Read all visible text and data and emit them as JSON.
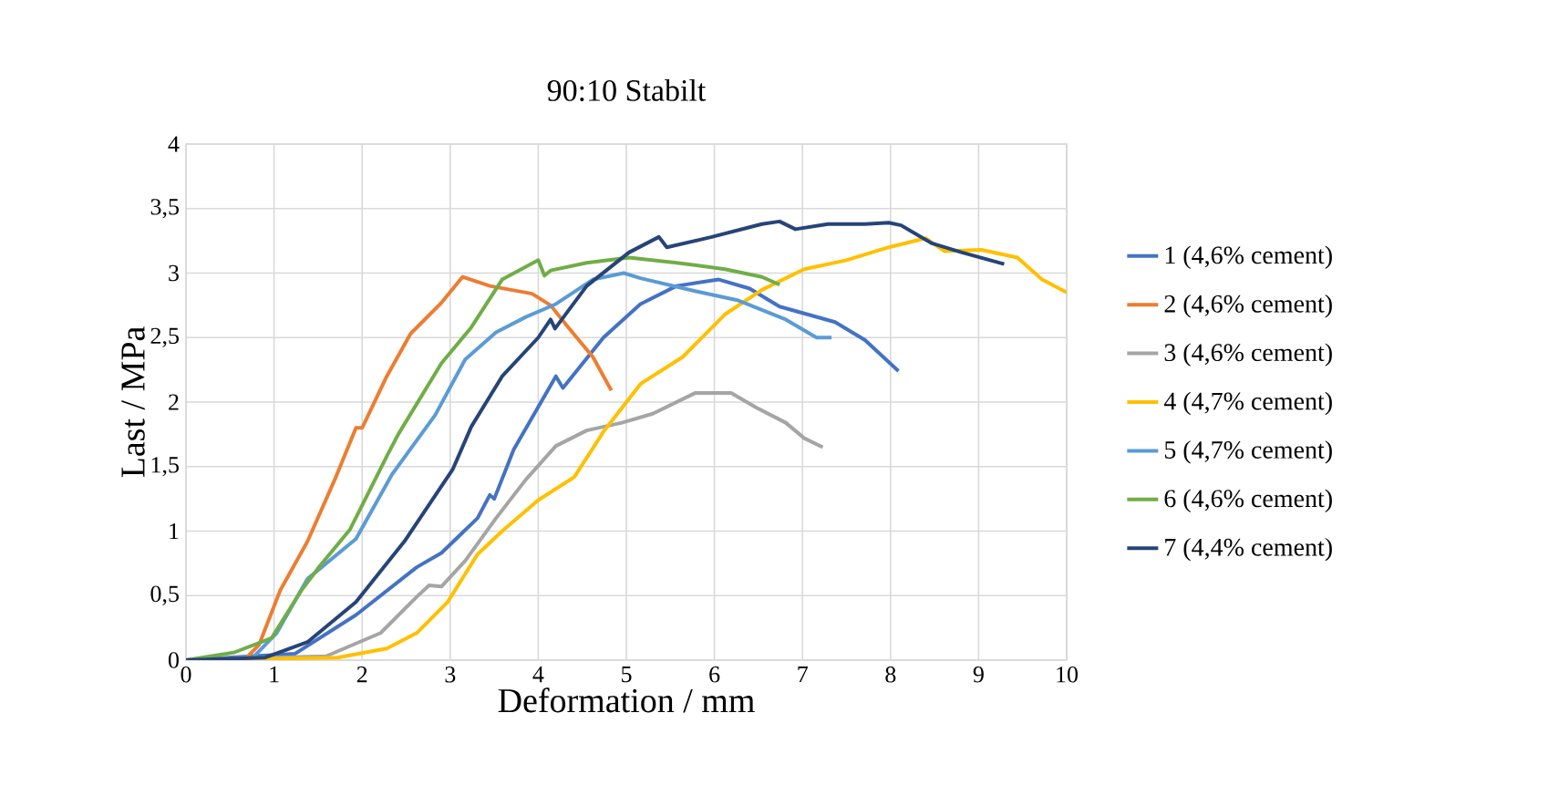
{
  "chart_data": {
    "type": "line",
    "title": "90:10 Stabilt",
    "xlabel": "Deformation / mm",
    "ylabel": "Last / MPa",
    "xlim": [
      0,
      10
    ],
    "ylim": [
      0,
      4
    ],
    "xticks": [
      0,
      1,
      2,
      3,
      4,
      5,
      6,
      7,
      8,
      9,
      10
    ],
    "yticks": [
      0,
      {
        "value": 0.5,
        "label": "0,5"
      },
      1,
      {
        "value": 1.5,
        "label": "1,5"
      },
      2,
      {
        "value": 2.5,
        "label": "2,5"
      },
      3,
      {
        "value": 3.5,
        "label": "3,5"
      },
      4
    ],
    "grid": true,
    "legend": "right",
    "marker": "none",
    "line_style": "solid",
    "series": [
      {
        "name": "1 (4,6% cement)",
        "color": "#4472c4",
        "x": [
          0,
          1.24,
          1.93,
          2.62,
          2.9,
          3.31,
          3.45,
          3.5,
          3.72,
          4.2,
          4.28,
          4.74,
          5.16,
          5.57,
          6.05,
          6.4,
          6.74,
          7.37,
          7.71,
          8.09
        ],
        "values": [
          0,
          0.05,
          0.35,
          0.72,
          0.83,
          1.1,
          1.28,
          1.25,
          1.63,
          2.2,
          2.11,
          2.5,
          2.76,
          2.9,
          2.95,
          2.88,
          2.74,
          2.62,
          2.48,
          2.24
        ]
      },
      {
        "name": "2 (4,6% cement)",
        "color": "#ed7d31",
        "x": [
          0,
          0.69,
          0.83,
          1.07,
          1.38,
          1.69,
          1.93,
          2.0,
          2.28,
          2.55,
          2.9,
          3.14,
          3.45,
          3.93,
          4.14,
          4.34,
          4.62,
          4.83
        ],
        "values": [
          0,
          0.02,
          0.12,
          0.54,
          0.92,
          1.4,
          1.8,
          1.8,
          2.2,
          2.53,
          2.77,
          2.97,
          2.9,
          2.84,
          2.75,
          2.58,
          2.35,
          2.09
        ]
      },
      {
        "name": "3 (4,6% cement)",
        "color": "#a5a5a5",
        "x": [
          0,
          1.59,
          2.21,
          2.62,
          2.76,
          2.9,
          3.17,
          3.52,
          3.86,
          4.2,
          4.55,
          4.95,
          5.3,
          5.78,
          6.19,
          6.47,
          6.81,
          7.02,
          7.23
        ],
        "values": [
          0,
          0.03,
          0.21,
          0.49,
          0.58,
          0.57,
          0.77,
          1.1,
          1.4,
          1.66,
          1.78,
          1.84,
          1.91,
          2.07,
          2.07,
          1.96,
          1.84,
          1.72,
          1.65
        ]
      },
      {
        "name": "4 (4,7% cement)",
        "color": "#ffc000",
        "x": [
          0,
          1.72,
          2.28,
          2.62,
          2.97,
          3.31,
          3.59,
          4.0,
          4.41,
          4.74,
          5.16,
          5.64,
          6.12,
          6.54,
          7.02,
          7.5,
          7.98,
          8.4,
          8.61,
          9.03,
          9.44,
          9.72,
          10
        ],
        "values": [
          0,
          0.02,
          0.09,
          0.21,
          0.45,
          0.82,
          1.0,
          1.24,
          1.42,
          1.77,
          2.14,
          2.35,
          2.68,
          2.87,
          3.03,
          3.1,
          3.2,
          3.27,
          3.17,
          3.18,
          3.12,
          2.95,
          2.85
        ]
      },
      {
        "name": "5 (4,7% cement)",
        "color": "#5b9bd5",
        "x": [
          0,
          0.76,
          1.03,
          1.38,
          1.93,
          2.34,
          2.83,
          3.17,
          3.52,
          3.86,
          4.2,
          4.62,
          4.97,
          5.16,
          5.78,
          6.26,
          6.81,
          7.16,
          7.33
        ],
        "values": [
          0,
          0.02,
          0.21,
          0.63,
          0.94,
          1.44,
          1.9,
          2.33,
          2.54,
          2.66,
          2.76,
          2.95,
          3.0,
          2.96,
          2.86,
          2.79,
          2.64,
          2.5,
          2.5
        ]
      },
      {
        "name": "6 (4,6% cement)",
        "color": "#70ad47",
        "x": [
          0,
          0.55,
          0.97,
          1.31,
          1.52,
          1.86,
          2.28,
          2.41,
          2.9,
          3.24,
          3.59,
          4.0,
          4.07,
          4.14,
          4.55,
          5.03,
          5.57,
          6.12,
          6.54,
          6.74
        ],
        "values": [
          0,
          0.06,
          0.17,
          0.54,
          0.73,
          1.01,
          1.58,
          1.75,
          2.3,
          2.58,
          2.95,
          3.1,
          2.98,
          3.02,
          3.08,
          3.12,
          3.08,
          3.03,
          2.97,
          2.91
        ]
      },
      {
        "name": "7 (4,4% cement)",
        "color": "#264478",
        "x": [
          0,
          0.9,
          1.38,
          1.93,
          2.48,
          3.03,
          3.24,
          3.59,
          4.0,
          4.14,
          4.19,
          4.55,
          5.03,
          5.37,
          5.46,
          5.97,
          6.54,
          6.74,
          6.92,
          7.29,
          7.71,
          7.98,
          8.12,
          8.47,
          8.81,
          9.29
        ],
        "values": [
          0,
          0.02,
          0.14,
          0.45,
          0.92,
          1.48,
          1.81,
          2.2,
          2.5,
          2.64,
          2.57,
          2.9,
          3.16,
          3.28,
          3.2,
          3.28,
          3.38,
          3.4,
          3.34,
          3.38,
          3.38,
          3.39,
          3.37,
          3.23,
          3.16,
          3.07
        ]
      }
    ]
  }
}
